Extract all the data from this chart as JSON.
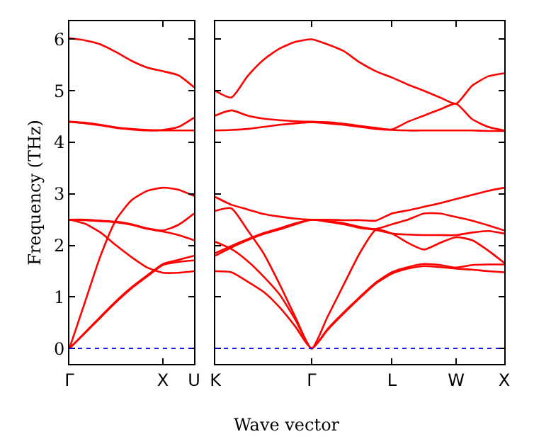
{
  "chart_data": [
    {
      "type": "line",
      "ylabel": "Frequency (THz)",
      "categories": [
        "Γ",
        null,
        null,
        null,
        null,
        null,
        "X",
        null,
        "U"
      ],
      "ylim": [
        -0.3,
        6.35
      ],
      "yticks": [
        0,
        1,
        2,
        3,
        4,
        5,
        6
      ],
      "marker": "none",
      "line_style": "solid",
      "ref_lines": [
        {
          "axis": "y",
          "value": 0,
          "label": null,
          "color": "#0000ff",
          "line_style": "dotted"
        }
      ],
      "series": [
        {
          "color": "#ff0000",
          "values": [
            0,
            0.3,
            0.6,
            0.9,
            1.17,
            1.4,
            1.62,
            1.68,
            1.71
          ]
        },
        {
          "color": "#ff0000",
          "values": [
            0,
            0.31,
            0.62,
            0.92,
            1.19,
            1.42,
            1.64,
            1.72,
            1.8
          ]
        },
        {
          "color": "#ff0000",
          "values": [
            2.5,
            2.42,
            2.25,
            2.0,
            1.77,
            1.57,
            1.47,
            1.47,
            1.5
          ]
        },
        {
          "color": "#ff0000",
          "values": [
            0,
            0.9,
            1.8,
            2.5,
            2.88,
            3.06,
            3.12,
            3.08,
            2.96
          ]
        },
        {
          "color": "#ff0000",
          "values": [
            2.5,
            2.49,
            2.47,
            2.45,
            2.4,
            2.32,
            2.27,
            2.2,
            2.1
          ]
        },
        {
          "color": "#ff0000",
          "values": [
            2.5,
            2.5,
            2.48,
            2.46,
            2.41,
            2.33,
            2.29,
            2.4,
            2.62
          ]
        },
        {
          "color": "#ff0000",
          "values": [
            4.4,
            4.37,
            4.33,
            4.28,
            4.25,
            4.23,
            4.23,
            4.23,
            4.23
          ]
        },
        {
          "color": "#ff0000",
          "values": [
            4.4,
            4.38,
            4.34,
            4.29,
            4.26,
            4.24,
            4.24,
            4.3,
            4.48
          ]
        },
        {
          "color": "#ff0000",
          "values": [
            6.02,
            5.98,
            5.9,
            5.75,
            5.58,
            5.45,
            5.38,
            5.3,
            5.07
          ]
        }
      ]
    },
    {
      "type": "line",
      "xlabel": "Wave vector",
      "tick_labels": "x",
      "categories": [
        "K",
        null,
        null,
        null,
        null,
        null,
        "Γ",
        null,
        null,
        null,
        null,
        "L",
        null,
        null,
        null,
        "W",
        null,
        null,
        "X"
      ],
      "ylim": [
        -0.3,
        6.35
      ],
      "yticks": [
        0,
        1,
        2,
        3,
        4,
        5,
        6
      ],
      "marker": "none",
      "line_style": "solid",
      "ref_lines": [
        {
          "axis": "y",
          "value": 0,
          "label": null,
          "color": "#0000ff",
          "line_style": "dotted"
        }
      ],
      "series": [
        {
          "color": "#ff0000",
          "values": [
            2.94,
            2.79,
            2.7,
            2.61,
            2.56,
            2.52,
            2.5,
            2.5,
            2.49,
            2.49,
            2.48,
            2.62,
            2.68,
            2.75,
            2.82,
            2.9,
            2.98,
            3.06,
            3.12
          ]
        },
        {
          "color": "#ff0000",
          "values": [
            1.85,
            1.99,
            2.12,
            2.24,
            2.33,
            2.43,
            2.5,
            2.47,
            2.43,
            2.36,
            2.32,
            2.41,
            2.5,
            2.62,
            2.62,
            2.55,
            2.48,
            2.39,
            2.29
          ]
        },
        {
          "color": "#ff0000",
          "values": [
            1.8,
            1.96,
            2.1,
            2.22,
            2.31,
            2.41,
            2.5,
            2.46,
            2.41,
            2.34,
            2.3,
            2.23,
            2.21,
            2.2,
            2.2,
            2.2,
            2.25,
            2.28,
            2.23
          ]
        },
        {
          "color": "#ff0000",
          "values": [
            2.67,
            2.72,
            2.3,
            1.85,
            1.25,
            0.6,
            0,
            0.62,
            1.24,
            1.85,
            2.3,
            2.23,
            2.05,
            1.92,
            2.05,
            2.16,
            2.1,
            1.9,
            1.66
          ]
        },
        {
          "color": "#ff0000",
          "values": [
            2.07,
            1.93,
            1.7,
            1.4,
            1.05,
            0.55,
            0,
            0.38,
            0.7,
            1.0,
            1.28,
            1.48,
            1.58,
            1.64,
            1.62,
            1.57,
            1.62,
            1.63,
            1.63
          ]
        },
        {
          "color": "#ff0000",
          "values": [
            1.5,
            1.48,
            1.3,
            1.1,
            0.8,
            0.42,
            0,
            0.36,
            0.68,
            0.98,
            1.26,
            1.45,
            1.55,
            1.6,
            1.58,
            1.55,
            1.53,
            1.5,
            1.48
          ]
        },
        {
          "color": "#ff0000",
          "values": [
            4.23,
            4.24,
            4.26,
            4.3,
            4.34,
            4.37,
            4.39,
            4.37,
            4.34,
            4.3,
            4.26,
            4.24,
            4.23,
            4.23,
            4.23,
            4.23,
            4.23,
            4.22,
            4.22
          ]
        },
        {
          "color": "#ff0000",
          "values": [
            4.52,
            4.62,
            4.52,
            4.46,
            4.43,
            4.41,
            4.4,
            4.39,
            4.36,
            4.32,
            4.28,
            4.25,
            4.4,
            4.52,
            4.64,
            4.75,
            4.45,
            4.3,
            4.23
          ]
        },
        {
          "color": "#ff0000",
          "values": [
            5.0,
            4.87,
            5.28,
            5.6,
            5.82,
            5.95,
            6.0,
            5.9,
            5.77,
            5.55,
            5.38,
            5.26,
            5.12,
            5.0,
            4.87,
            4.75,
            5.1,
            5.28,
            5.34
          ]
        }
      ]
    }
  ]
}
